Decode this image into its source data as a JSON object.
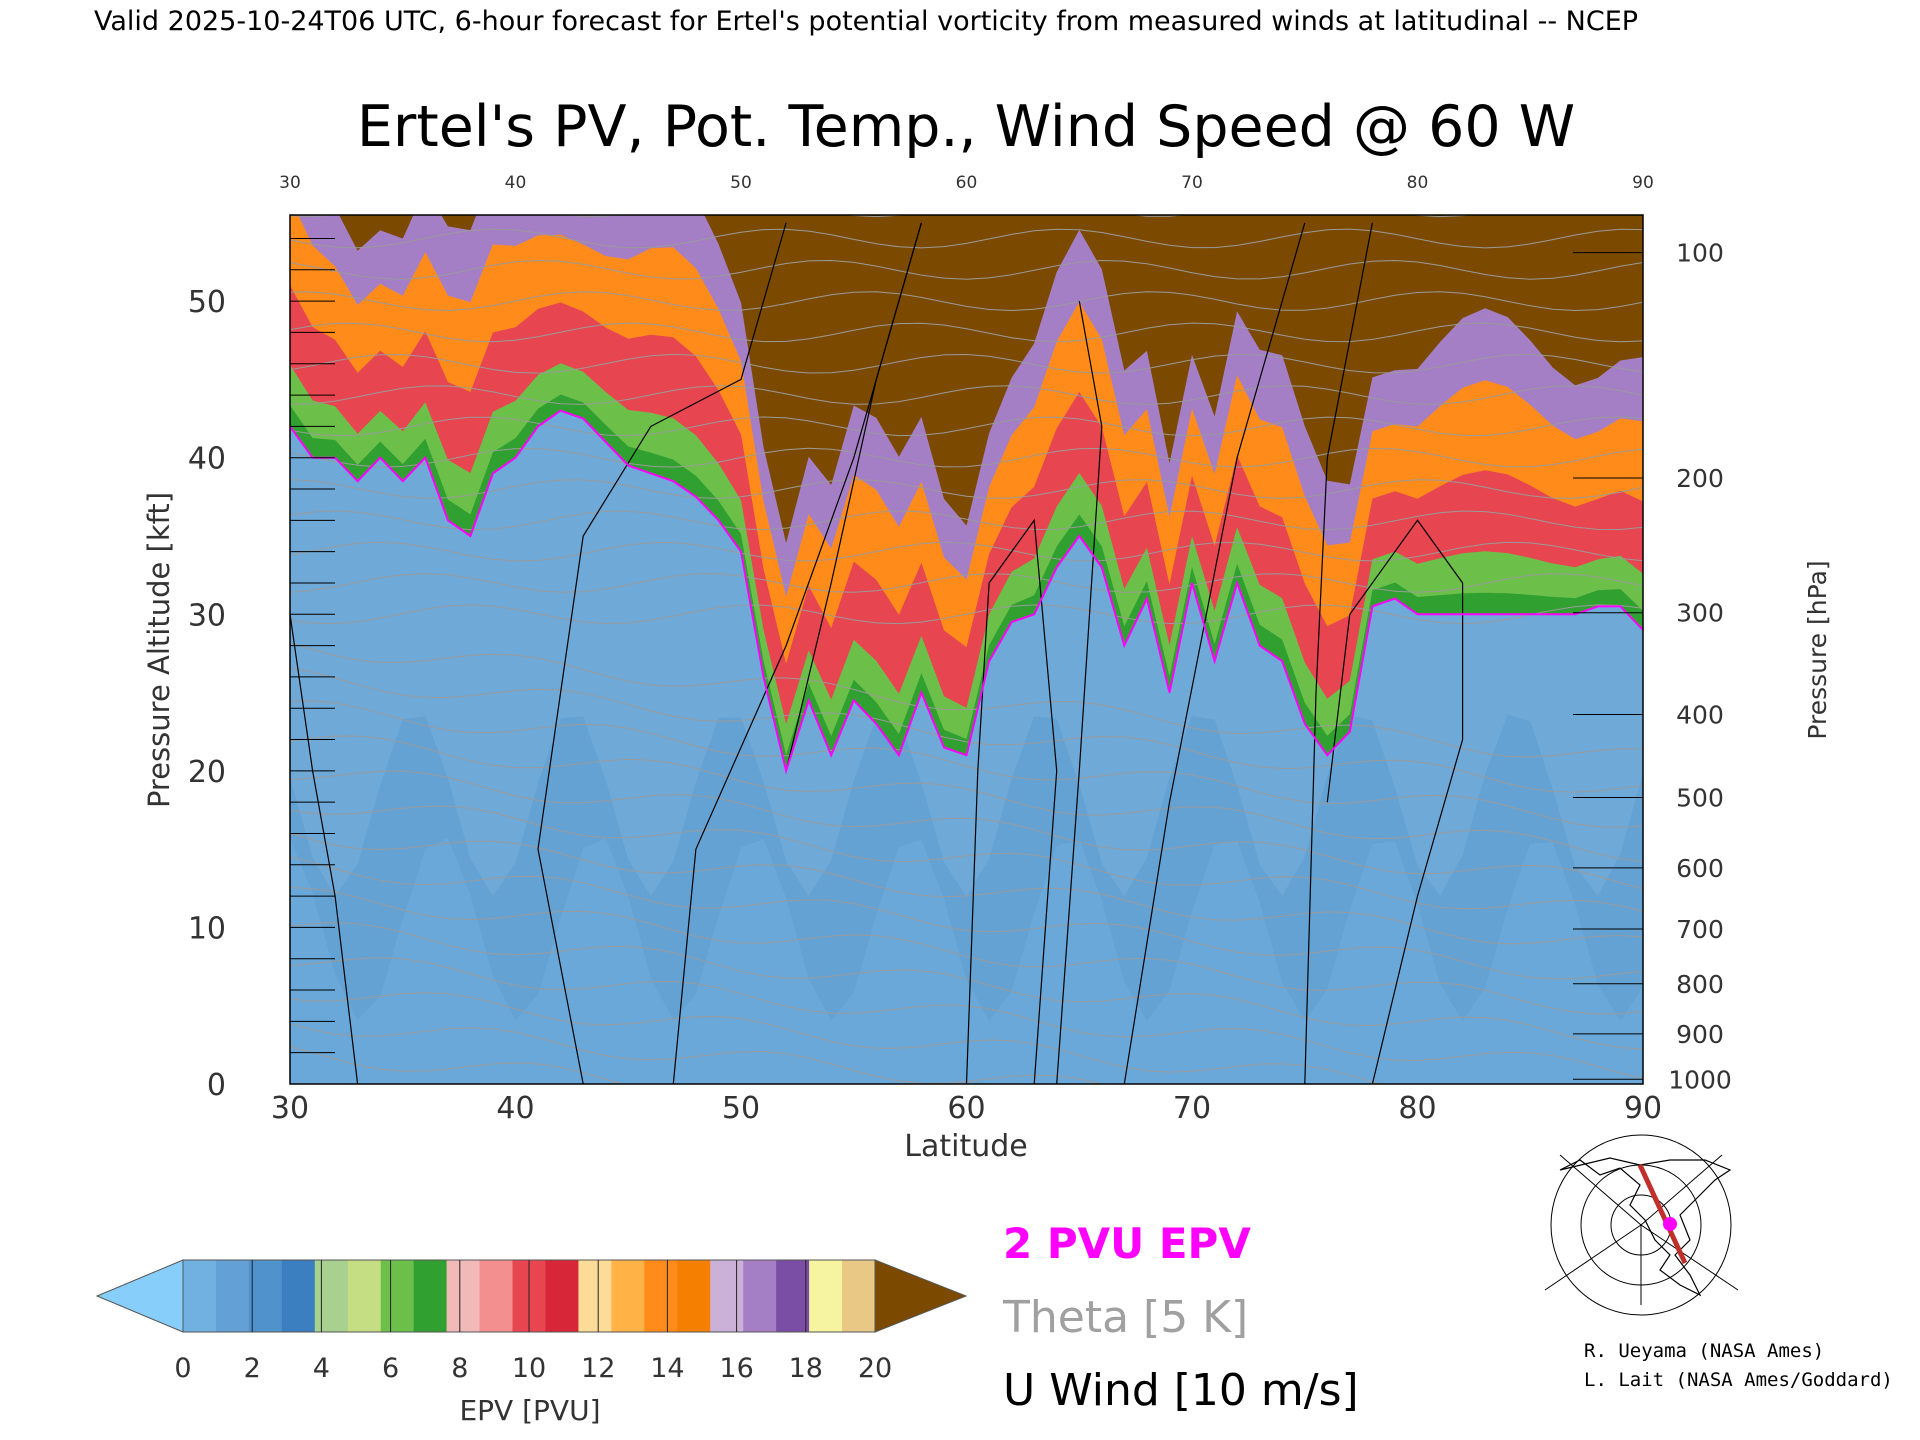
{
  "header": "Valid 2025-10-24T06 UTC, 6-hour forecast for Ertel's potential vorticity from measured winds at latitudinal -- NCEP",
  "chart_data": {
    "type": "heatmap",
    "title": "Ertel's PV, Pot. Temp., Wind Speed @ 60 W",
    "xlabel": "Latitude",
    "ylabel_left": "Pressure Altitude [kft]",
    "ylabel_right": "Pressure [hPa]",
    "xlim": [
      30,
      90
    ],
    "ylim": [
      0,
      55.5
    ],
    "x_ticks": [
      "30",
      "40",
      "50",
      "60",
      "70",
      "80",
      "90"
    ],
    "top_ticks": [
      "30",
      "40",
      "50",
      "60",
      "70",
      "80",
      "90"
    ],
    "y_ticks": [
      "0",
      "10",
      "20",
      "30",
      "40",
      "50"
    ],
    "pressure_ticks": [
      {
        "label": "100",
        "kft": 53.1
      },
      {
        "label": "200",
        "kft": 38.7
      },
      {
        "label": "300",
        "kft": 30.1
      },
      {
        "label": "400",
        "kft": 23.6
      },
      {
        "label": "500",
        "kft": 18.3
      },
      {
        "label": "600",
        "kft": 13.8
      },
      {
        "label": "700",
        "kft": 9.9
      },
      {
        "label": "800",
        "kft": 6.4
      },
      {
        "label": "900",
        "kft": 3.2
      },
      {
        "label": "1000",
        "kft": 0.3
      }
    ],
    "tropopause_2pvu_kft": {
      "lat": [
        30,
        31,
        32,
        33,
        34,
        35,
        36,
        37,
        38,
        39,
        40,
        41,
        42,
        43,
        44,
        45,
        46,
        47,
        48,
        49,
        50,
        51,
        52,
        53,
        54,
        55,
        56,
        57,
        58,
        59,
        60,
        61,
        62,
        63,
        64,
        65,
        66,
        67,
        68,
        69,
        70,
        71,
        72,
        73,
        74,
        75,
        76,
        77,
        78,
        79,
        80,
        81,
        82,
        83,
        84,
        85,
        86,
        87,
        88,
        89,
        90
      ],
      "kft": [
        42,
        40,
        40,
        38.5,
        40,
        38.5,
        40,
        36,
        35,
        39,
        40,
        42,
        43,
        42.5,
        41,
        39.5,
        39,
        38.5,
        37.5,
        36,
        34,
        26,
        20,
        24.5,
        21,
        24.5,
        23,
        21,
        25,
        21.5,
        21,
        27,
        29.5,
        30,
        33,
        35,
        33,
        28,
        31,
        25,
        32,
        27,
        32,
        28,
        27,
        23,
        21,
        22.5,
        30.5,
        31,
        30,
        30,
        30,
        30,
        30,
        30,
        30,
        30,
        30.5,
        30.5,
        29
      ]
    },
    "colorbar": {
      "label": "EPV [PVU]",
      "ticks": [
        "0",
        "2",
        "4",
        "6",
        "8",
        "10",
        "12",
        "14",
        "16",
        "18",
        "20"
      ],
      "colors": [
        "#87cefa",
        "#71b1e1",
        "#62a0d5",
        "#5092cb",
        "#3b7fc0",
        "#a8d08f",
        "#c5de84",
        "#6cc04a",
        "#30a030",
        "#f2b9b9",
        "#f48f8f",
        "#e74550",
        "#d72638",
        "#fddc9a",
        "#ffb347",
        "#ff8c1a",
        "#f47f00",
        "#cbb0d8",
        "#a57fc5",
        "#7a4ea4",
        "#f6f4a0",
        "#e8c884",
        "#7b4a00"
      ]
    }
  },
  "legend": {
    "pvu_label": "2 PVU EPV",
    "pvu_color": "#ff00ff",
    "theta_label": "Theta [5 K]",
    "theta_color": "#a0a0a0",
    "wind_label": "U Wind [10 m/s]",
    "wind_color": "#000000"
  },
  "credits": [
    "R. Ueyama (NASA Ames)",
    "L. Lait (NASA Ames/Goddard)"
  ],
  "minimap": {
    "track_color": "#c0302a",
    "marker_color": "#ff00ff"
  }
}
